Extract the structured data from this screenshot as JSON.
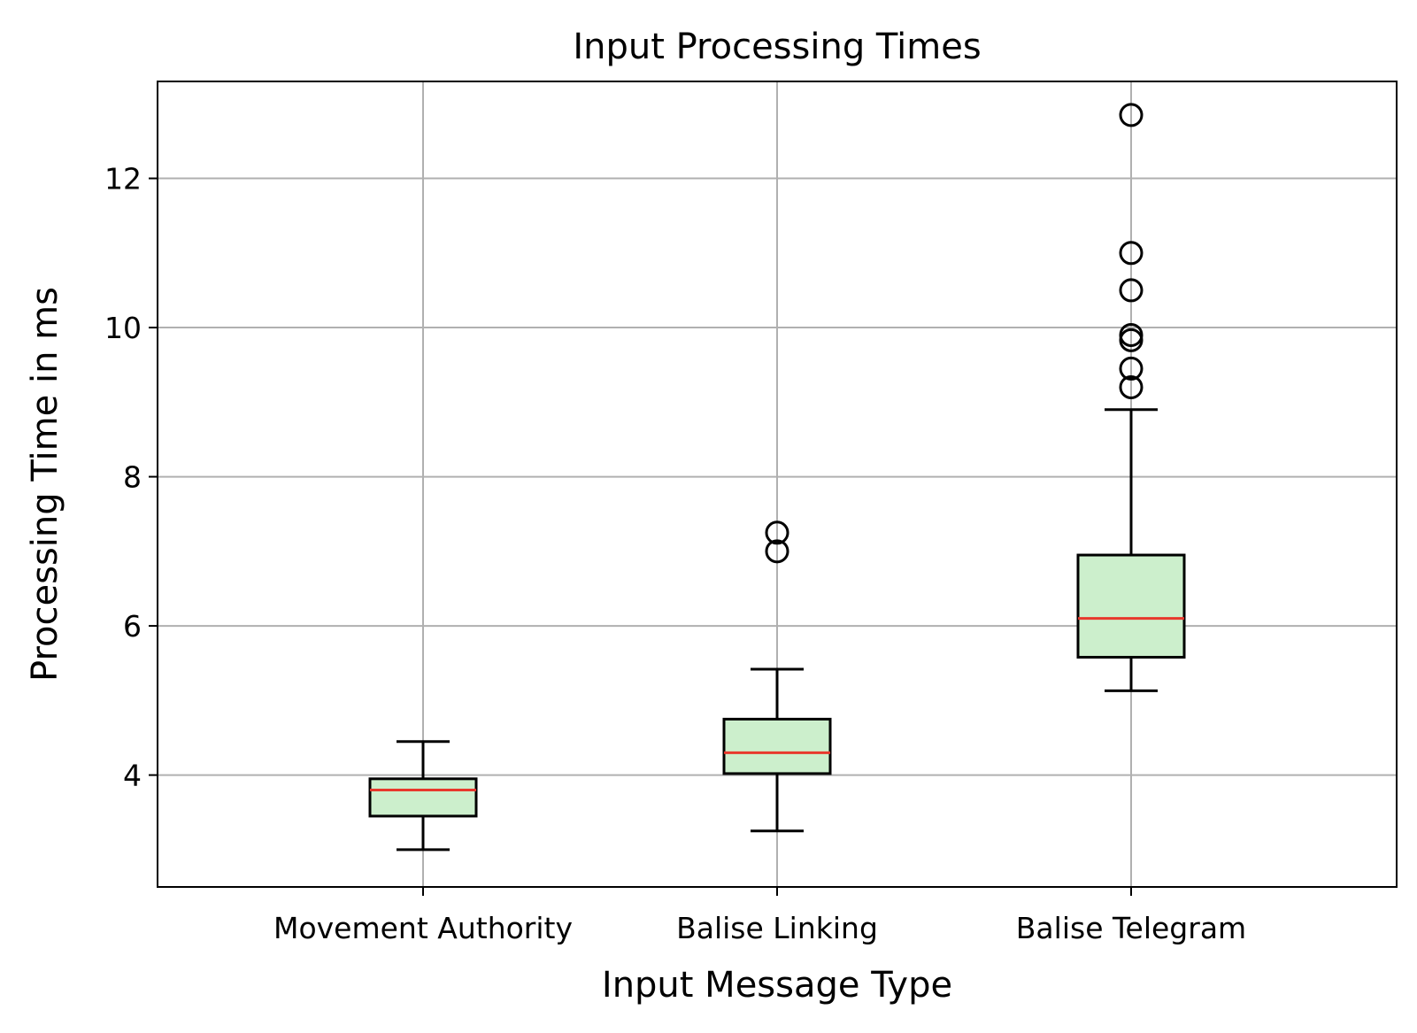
{
  "chart_data": {
    "type": "box",
    "title": "Input Processing Times",
    "xlabel": "Input Message Type",
    "ylabel": "Processing Time in ms",
    "categories": [
      "Movement Authority",
      "Balise Linking",
      "Balise Telegram"
    ],
    "ylim": [
      2.5,
      13.3
    ],
    "yticks": [
      4,
      6,
      8,
      10,
      12
    ],
    "grid": true,
    "boxes": [
      {
        "whisker_low": 3.0,
        "q1": 3.45,
        "median": 3.8,
        "q3": 3.95,
        "whisker_high": 4.45,
        "outliers": []
      },
      {
        "whisker_low": 3.25,
        "q1": 4.02,
        "median": 4.3,
        "q3": 4.75,
        "whisker_high": 5.42,
        "outliers": [
          7.0,
          7.25
        ]
      },
      {
        "whisker_low": 5.13,
        "q1": 5.58,
        "median": 6.1,
        "q3": 6.95,
        "whisker_high": 8.9,
        "outliers": [
          9.2,
          9.45,
          9.83,
          9.9,
          10.5,
          11.0,
          12.85
        ]
      }
    ],
    "colors": {
      "box_fill": "#ccefcc",
      "box_edge": "#000000",
      "median": "#e8382c",
      "grid": "#b0b0b0"
    }
  }
}
